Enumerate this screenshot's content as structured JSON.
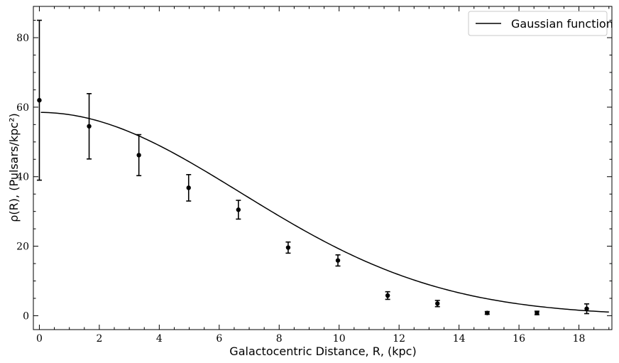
{
  "chart_data": {
    "type": "scatter",
    "title": "",
    "xlabel": "Galactocentric Distance, R, (kpc)",
    "ylabel": "ρ(R), (Pulsars/kpc²)",
    "xlim": [
      -0.2,
      19.1
    ],
    "ylim": [
      -4,
      89
    ],
    "x_ticks": [
      0,
      2,
      4,
      6,
      8,
      10,
      12,
      14,
      16,
      18
    ],
    "y_ticks": [
      0,
      20,
      40,
      60,
      80
    ],
    "legend": {
      "position": "top-right",
      "entries": [
        "Gaussian function"
      ]
    },
    "grid": false,
    "series": [
      {
        "kind": "points-with-error-bars",
        "color": "#000000",
        "x": [
          0.0,
          1.66,
          3.32,
          4.98,
          6.64,
          8.3,
          9.96,
          11.62,
          13.28,
          14.94,
          16.6,
          18.26
        ],
        "y": [
          62.0,
          54.5,
          46.2,
          36.8,
          30.5,
          19.6,
          15.9,
          5.8,
          3.5,
          0.8,
          0.8,
          2.0
        ],
        "yerr": [
          23.0,
          9.4,
          5.9,
          3.8,
          2.7,
          1.6,
          1.6,
          1.1,
          0.9,
          0.4,
          0.5,
          1.4
        ]
      },
      {
        "kind": "line",
        "name": "Gaussian function",
        "color": "#000000",
        "model": "gaussian",
        "amplitude": 58.5,
        "sigma": 6.7,
        "x_range": [
          0.05,
          19.0
        ]
      }
    ]
  }
}
